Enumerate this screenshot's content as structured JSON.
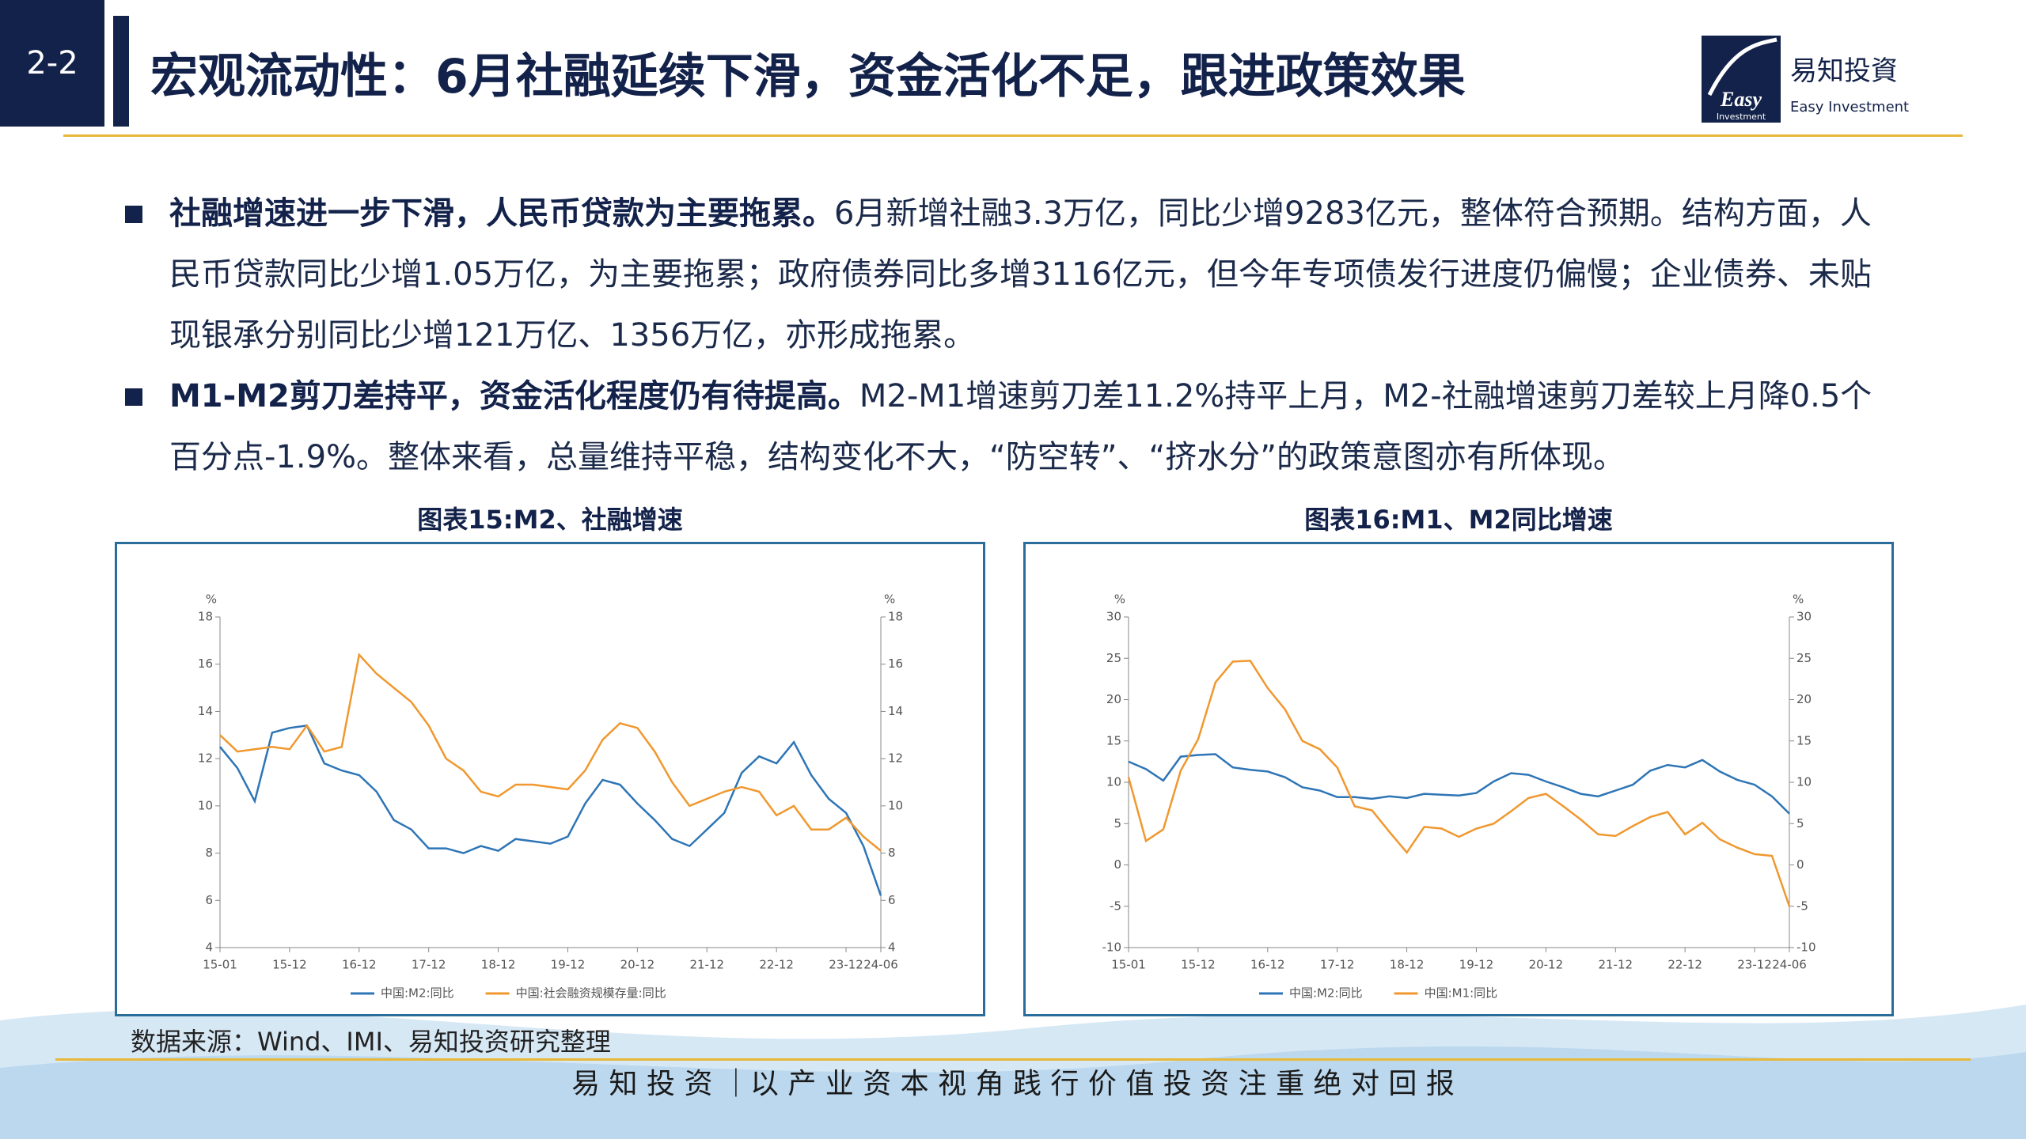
{
  "header": {
    "section": "2-2",
    "title": "宏观流动性：6月社融延续下滑，资金活化不足，跟进政策效果"
  },
  "logo": {
    "mark": "Easy",
    "mark_sub": "Investment",
    "cn": "易知投資",
    "en": "Easy Investment"
  },
  "bullets": [
    {
      "bold": "社融增速进一步下滑，人民币贷款为主要拖累。",
      "text": "6月新增社融3.3万亿，同比少增9283亿元，整体符合预期。结构方面，人民币贷款同比少增1.05万亿，为主要拖累；政府债券同比多增3116亿元，但今年专项债发行进度仍偏慢；企业债券、未贴现银承分别同比少增121万亿、1356万亿，亦形成拖累。"
    },
    {
      "bold": "M1-M2剪刀差持平，资金活化程度仍有待提高。",
      "text": "M2-M1增速剪刀差11.2%持平上月，M2-社融增速剪刀差较上月降0.5个百分点-1.9%。整体来看，总量维持平稳，结构变化不大，“防空转”、“挤水分”的政策意图亦有所体现。"
    }
  ],
  "chart_data": [
    {
      "type": "line",
      "title": "图表15:M2、社融增速",
      "y_unit": "%",
      "y2_unit": "%",
      "categories": [
        "15-01",
        null,
        null,
        null,
        "15-12",
        null,
        null,
        null,
        "16-12",
        null,
        null,
        null,
        "17-12",
        null,
        null,
        null,
        "18-12",
        null,
        null,
        null,
        "19-12",
        null,
        null,
        null,
        "20-12",
        null,
        null,
        null,
        "21-12",
        null,
        null,
        null,
        "22-12",
        null,
        null,
        null,
        "23-12",
        null,
        "24-06"
      ],
      "ylim": [
        4,
        18
      ],
      "yticks": [
        4,
        6,
        8,
        10,
        12,
        14,
        16,
        18
      ],
      "y2lim": [
        4,
        18
      ],
      "y2ticks": [
        4,
        6,
        8,
        10,
        12,
        14,
        16,
        18
      ],
      "series": [
        {
          "name": "中国:M2:同比",
          "color": "#2e75b6",
          "values": [
            12.5,
            11.6,
            10.2,
            13.1,
            13.3,
            13.4,
            11.8,
            11.5,
            11.3,
            10.6,
            9.4,
            9.0,
            8.2,
            8.2,
            8.0,
            8.3,
            8.1,
            8.6,
            8.5,
            8.4,
            8.7,
            10.1,
            11.1,
            10.9,
            10.1,
            9.4,
            8.6,
            8.3,
            9.0,
            9.7,
            11.4,
            12.1,
            11.8,
            12.7,
            11.3,
            10.3,
            9.7,
            8.3,
            6.2
          ]
        },
        {
          "name": "中国:社会融资规模存量:同比",
          "color": "#f0982f",
          "axis": "y2",
          "values": [
            13.0,
            12.3,
            12.4,
            12.5,
            12.4,
            13.4,
            12.3,
            12.5,
            16.4,
            15.6,
            15.0,
            14.4,
            13.4,
            12.0,
            11.5,
            10.6,
            10.4,
            10.9,
            10.9,
            10.8,
            10.7,
            11.5,
            12.8,
            13.5,
            13.3,
            12.3,
            11.0,
            10.0,
            10.3,
            10.6,
            10.8,
            10.6,
            9.6,
            10.0,
            9.0,
            9.0,
            9.5,
            8.7,
            8.1
          ]
        }
      ]
    },
    {
      "type": "line",
      "title": "图表16:M1、M2同比增速",
      "y_unit": "%",
      "y2_unit": "%",
      "categories": [
        "15-01",
        null,
        null,
        null,
        "15-12",
        null,
        null,
        null,
        "16-12",
        null,
        null,
        null,
        "17-12",
        null,
        null,
        null,
        "18-12",
        null,
        null,
        null,
        "19-12",
        null,
        null,
        null,
        "20-12",
        null,
        null,
        null,
        "21-12",
        null,
        null,
        null,
        "22-12",
        null,
        null,
        null,
        "23-12",
        null,
        "24-06"
      ],
      "ylim": [
        -10,
        30
      ],
      "yticks": [
        -10,
        -5,
        0,
        5,
        10,
        15,
        20,
        25,
        30
      ],
      "y2lim": [
        -10,
        30
      ],
      "y2ticks": [
        -10,
        -5,
        0,
        5,
        10,
        15,
        20,
        25,
        30
      ],
      "series": [
        {
          "name": "中国:M2:同比",
          "color": "#2e75b6",
          "values": [
            12.5,
            11.6,
            10.2,
            13.1,
            13.3,
            13.4,
            11.8,
            11.5,
            11.3,
            10.6,
            9.4,
            9.0,
            8.2,
            8.2,
            8.0,
            8.3,
            8.1,
            8.6,
            8.5,
            8.4,
            8.7,
            10.1,
            11.1,
            10.9,
            10.1,
            9.4,
            8.6,
            8.3,
            9.0,
            9.7,
            11.4,
            12.1,
            11.8,
            12.7,
            11.3,
            10.3,
            9.7,
            8.3,
            6.2
          ]
        },
        {
          "name": "中国:M1:同比",
          "color": "#f0982f",
          "axis": "y2",
          "values": [
            10.6,
            2.9,
            4.3,
            11.4,
            15.2,
            22.1,
            24.6,
            24.7,
            21.4,
            18.8,
            15.0,
            14.0,
            11.8,
            7.1,
            6.6,
            4.0,
            1.5,
            4.6,
            4.4,
            3.4,
            4.4,
            5.0,
            6.5,
            8.1,
            8.6,
            7.1,
            5.5,
            3.7,
            3.5,
            4.7,
            5.8,
            6.4,
            3.7,
            5.1,
            3.1,
            2.1,
            1.3,
            1.1,
            -5.0
          ]
        }
      ]
    }
  ],
  "source": "数据来源：Wind、IMI、易知投资研究整理",
  "footer": "易 知 投 资 ｜以 产 业 资 本 视 角 践 行 价 值 投 资 注 重 绝 对 回 报"
}
